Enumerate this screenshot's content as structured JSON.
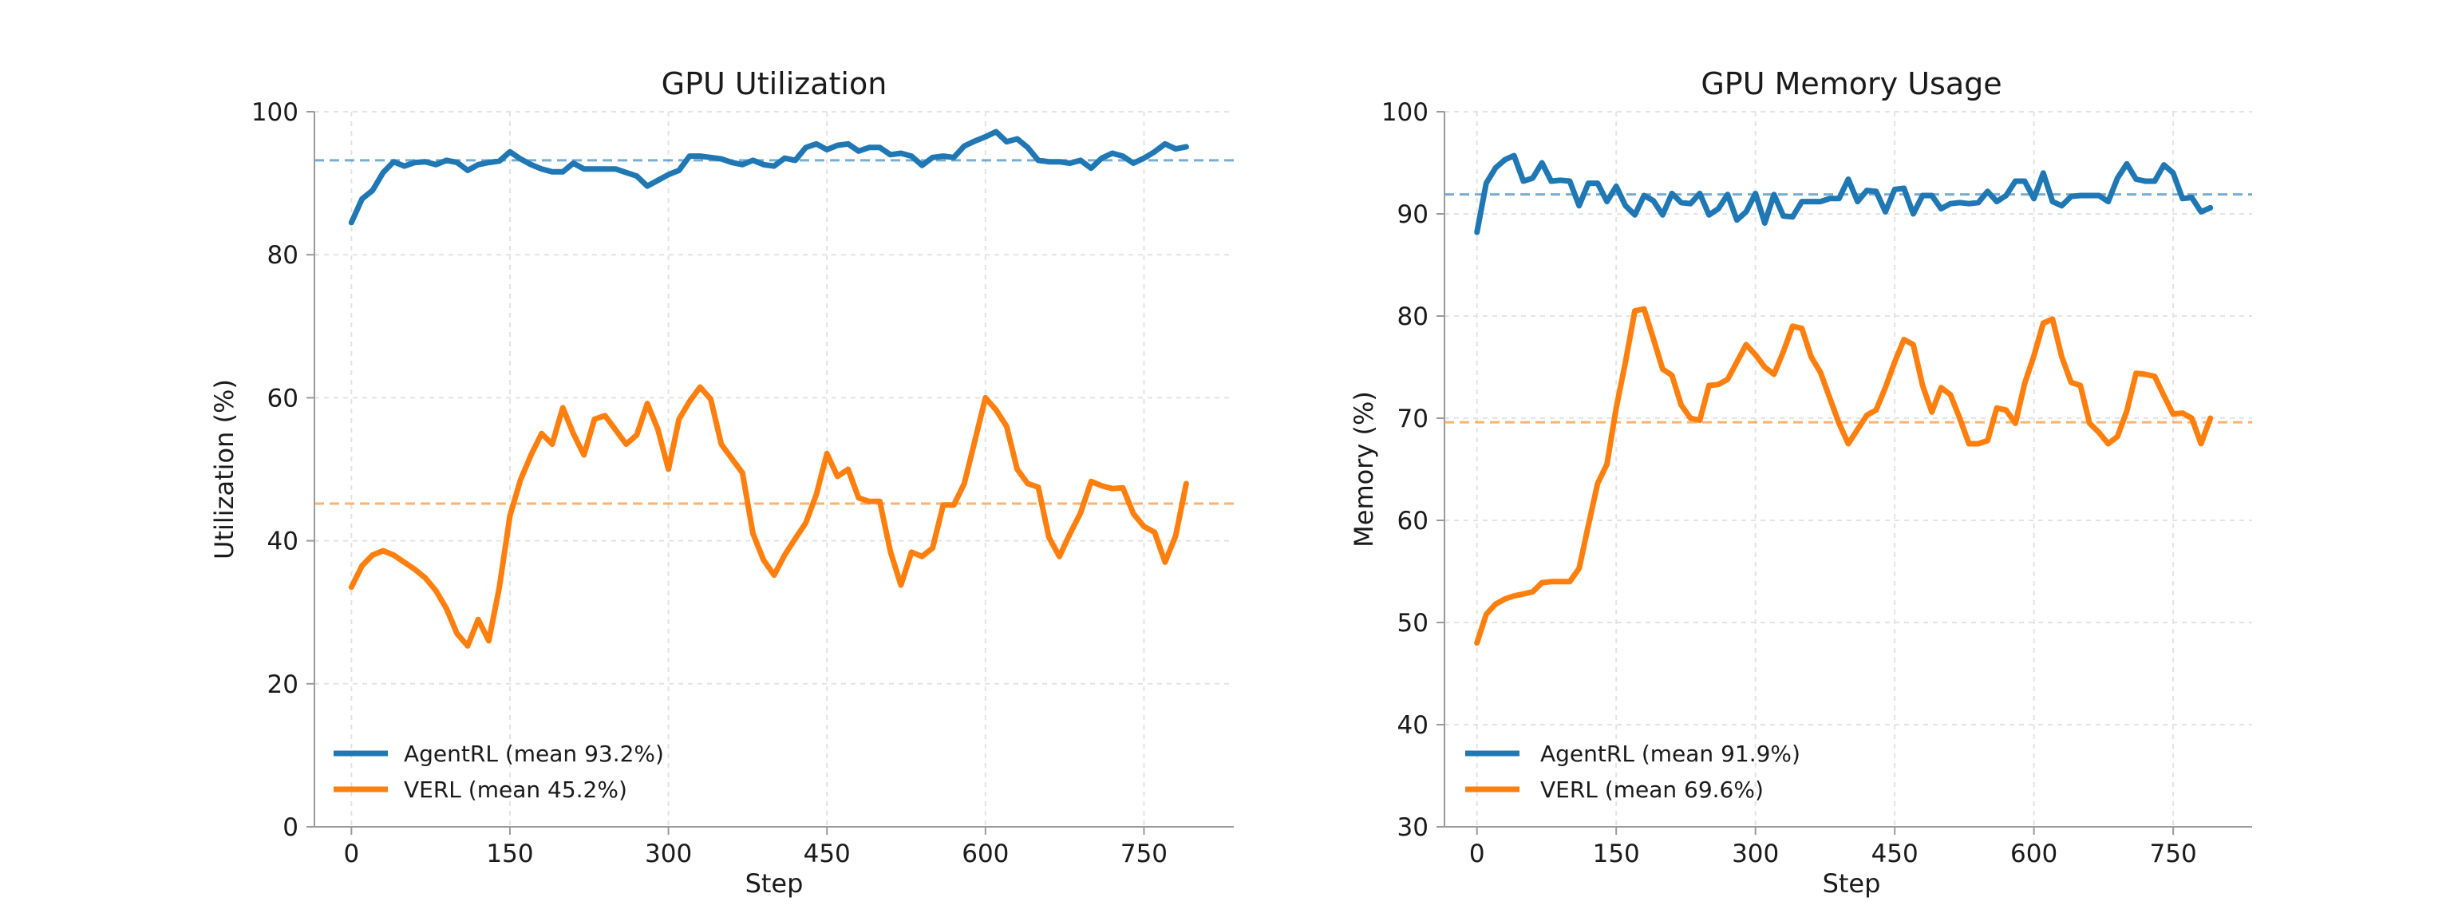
{
  "chart_data": [
    {
      "type": "line",
      "title": "GPU Utilization",
      "xlabel": "Step",
      "ylabel": "Utilization (%)",
      "xlim": [
        -35,
        835
      ],
      "ylim": [
        0,
        100
      ],
      "xticks": [
        0,
        150,
        300,
        450,
        600,
        750
      ],
      "yticks": [
        0,
        20,
        40,
        60,
        80,
        100
      ],
      "grid": true,
      "legend_position": "bottom-left",
      "series": [
        {
          "name": "AgentRL (mean 93.2%)",
          "color": "#1f77b4",
          "mean": 93.2,
          "x": [
            0,
            10,
            20,
            30,
            40,
            50,
            60,
            70,
            80,
            90,
            100,
            110,
            120,
            130,
            140,
            150,
            160,
            170,
            180,
            190,
            200,
            210,
            220,
            230,
            240,
            250,
            260,
            270,
            280,
            290,
            300,
            310,
            320,
            330,
            340,
            350,
            360,
            370,
            380,
            390,
            400,
            410,
            420,
            430,
            440,
            450,
            460,
            470,
            480,
            490,
            500,
            510,
            520,
            530,
            540,
            550,
            560,
            570,
            580,
            590,
            600,
            610,
            620,
            630,
            640,
            650,
            660,
            670,
            680,
            690,
            700,
            710,
            720,
            730,
            740,
            750,
            760,
            770,
            780,
            790
          ],
          "values": [
            84.5,
            87.8,
            89,
            91.5,
            93,
            92.4,
            92.9,
            93,
            92.6,
            93.2,
            92.9,
            91.8,
            92.6,
            92.9,
            93.1,
            94.4,
            93.4,
            92.6,
            92.0,
            91.6,
            91.6,
            92.8,
            92.0,
            92.0,
            92.0,
            92.0,
            91.5,
            91.0,
            89.6,
            90.4,
            91.2,
            91.8,
            93.8,
            93.8,
            93.6,
            93.4,
            92.9,
            92.6,
            93.2,
            92.6,
            92.4,
            93.5,
            93.2,
            95.0,
            95.5,
            94.7,
            95.3,
            95.5,
            94.5,
            95.0,
            95.0,
            94.0,
            94.2,
            93.8,
            92.5,
            93.6,
            93.8,
            93.6,
            95.2,
            95.9,
            96.5,
            97.2,
            95.8,
            96.2,
            95.0,
            93.2,
            93.0,
            93.0,
            92.8,
            93.2,
            92.1,
            93.5,
            94.2,
            93.8,
            92.8,
            93.5,
            94.4,
            95.5,
            94.8,
            95.1
          ]
        },
        {
          "name": "VERL (mean 45.2%)",
          "color": "#ff7f0e",
          "mean": 45.2,
          "x": [
            0,
            10,
            20,
            30,
            40,
            50,
            60,
            70,
            80,
            90,
            100,
            110,
            120,
            130,
            140,
            150,
            160,
            170,
            180,
            190,
            200,
            210,
            220,
            230,
            240,
            250,
            260,
            270,
            280,
            290,
            300,
            310,
            320,
            330,
            340,
            350,
            360,
            370,
            380,
            390,
            400,
            410,
            420,
            430,
            440,
            450,
            460,
            470,
            480,
            490,
            500,
            510,
            520,
            530,
            540,
            550,
            560,
            570,
            580,
            590,
            600,
            610,
            620,
            630,
            640,
            650,
            660,
            670,
            680,
            690,
            700,
            710,
            720,
            730,
            740,
            750,
            760,
            770,
            780,
            790
          ],
          "values": [
            33.5,
            36.5,
            38.0,
            38.6,
            38.0,
            37.0,
            36.0,
            34.8,
            33.0,
            30.5,
            27.0,
            25.3,
            29.0,
            26.0,
            33.5,
            43.5,
            48.5,
            52.0,
            55.0,
            53.5,
            58.6,
            55.0,
            52.0,
            57.0,
            57.5,
            55.5,
            53.5,
            54.8,
            59.2,
            55.6,
            50.0,
            57.0,
            59.5,
            61.5,
            59.8,
            53.5,
            51.5,
            49.5,
            41.0,
            37.3,
            35.2,
            38.0,
            40.3,
            42.5,
            46.5,
            52.2,
            49.0,
            50.0,
            46.0,
            45.5,
            45.5,
            38.5,
            33.8,
            38.4,
            37.8,
            39.0,
            45.0,
            45.0,
            48.0,
            54.0,
            60.0,
            58.3,
            56.0,
            50.0,
            48.0,
            47.5,
            40.5,
            37.8,
            41.0,
            43.9,
            48.3,
            47.7,
            47.3,
            47.4,
            43.8,
            42.0,
            41.2,
            37.0,
            40.7,
            48.0
          ]
        }
      ]
    },
    {
      "type": "line",
      "title": "GPU Memory Usage",
      "xlabel": "Step",
      "ylabel": "Memory (%)",
      "xlim": [
        -35,
        835
      ],
      "ylim": [
        30,
        100
      ],
      "xticks": [
        0,
        150,
        300,
        450,
        600,
        750
      ],
      "yticks": [
        30,
        40,
        50,
        60,
        70,
        80,
        90,
        100
      ],
      "grid": true,
      "legend_position": "bottom-left",
      "series": [
        {
          "name": "AgentRL (mean 91.9%)",
          "color": "#1f77b4",
          "mean": 91.9,
          "x": [
            0,
            10,
            20,
            30,
            40,
            50,
            60,
            70,
            80,
            90,
            100,
            110,
            120,
            130,
            140,
            150,
            160,
            170,
            180,
            190,
            200,
            210,
            220,
            230,
            240,
            250,
            260,
            270,
            280,
            290,
            300,
            310,
            320,
            330,
            340,
            350,
            360,
            370,
            380,
            390,
            400,
            410,
            420,
            430,
            440,
            450,
            460,
            470,
            480,
            490,
            500,
            510,
            520,
            530,
            540,
            550,
            560,
            570,
            580,
            590,
            600,
            610,
            620,
            630,
            640,
            650,
            660,
            670,
            680,
            690,
            700,
            710,
            720,
            730,
            740,
            750,
            760,
            770,
            780,
            790
          ],
          "values": [
            88.2,
            93.0,
            94.5,
            95.3,
            95.7,
            93.2,
            93.5,
            95.0,
            93.2,
            93.3,
            93.2,
            90.8,
            93.0,
            93.0,
            91.2,
            92.7,
            90.8,
            89.9,
            91.8,
            91.3,
            89.9,
            92.0,
            91.1,
            91.0,
            92.0,
            89.9,
            90.5,
            91.9,
            89.4,
            90.2,
            92.0,
            89.1,
            91.9,
            89.8,
            89.7,
            91.2,
            91.2,
            91.2,
            91.5,
            91.5,
            93.4,
            91.2,
            92.3,
            92.2,
            90.2,
            92.4,
            92.5,
            90.0,
            91.8,
            91.8,
            90.5,
            91.0,
            91.1,
            91.0,
            91.1,
            92.2,
            91.2,
            91.8,
            93.2,
            93.2,
            91.5,
            94.0,
            91.2,
            90.8,
            91.7,
            91.8,
            91.8,
            91.8,
            91.2,
            93.5,
            94.9,
            93.4,
            93.2,
            93.2,
            94.8,
            94.0,
            91.5,
            91.6,
            90.2,
            90.6
          ]
        },
        {
          "name": "VERL (mean 69.6%)",
          "color": "#ff7f0e",
          "mean": 69.6,
          "x": [
            0,
            10,
            20,
            30,
            40,
            50,
            60,
            70,
            80,
            90,
            100,
            110,
            120,
            130,
            140,
            150,
            160,
            170,
            180,
            190,
            200,
            210,
            220,
            230,
            240,
            250,
            260,
            270,
            280,
            290,
            300,
            310,
            320,
            330,
            340,
            350,
            360,
            370,
            380,
            390,
            400,
            410,
            420,
            430,
            440,
            450,
            460,
            470,
            480,
            490,
            500,
            510,
            520,
            530,
            540,
            550,
            560,
            570,
            580,
            590,
            600,
            610,
            620,
            630,
            640,
            650,
            660,
            670,
            680,
            690,
            700,
            710,
            720,
            730,
            740,
            750,
            760,
            770,
            780,
            790
          ],
          "values": [
            48.0,
            50.8,
            51.8,
            52.3,
            52.6,
            52.8,
            53.0,
            53.9,
            54.0,
            54.0,
            54.0,
            55.3,
            59.5,
            63.6,
            65.5,
            71.0,
            75.5,
            80.5,
            80.7,
            77.8,
            74.8,
            74.2,
            71.3,
            70.0,
            69.8,
            73.2,
            73.3,
            73.8,
            75.5,
            77.2,
            76.2,
            75.0,
            74.3,
            76.5,
            79.0,
            78.8,
            76.0,
            74.5,
            72.0,
            69.5,
            67.5,
            68.9,
            70.3,
            70.8,
            73.0,
            75.5,
            77.7,
            77.2,
            73.2,
            70.6,
            73.0,
            72.3,
            70.0,
            67.5,
            67.5,
            67.8,
            71.0,
            70.8,
            69.5,
            73.4,
            76.1,
            79.3,
            79.7,
            76.0,
            73.5,
            73.2,
            69.5,
            68.6,
            67.5,
            68.2,
            70.7,
            74.4,
            74.3,
            74.1,
            72.2,
            70.4,
            70.5,
            70.0,
            67.5,
            70.0
          ]
        }
      ]
    }
  ]
}
